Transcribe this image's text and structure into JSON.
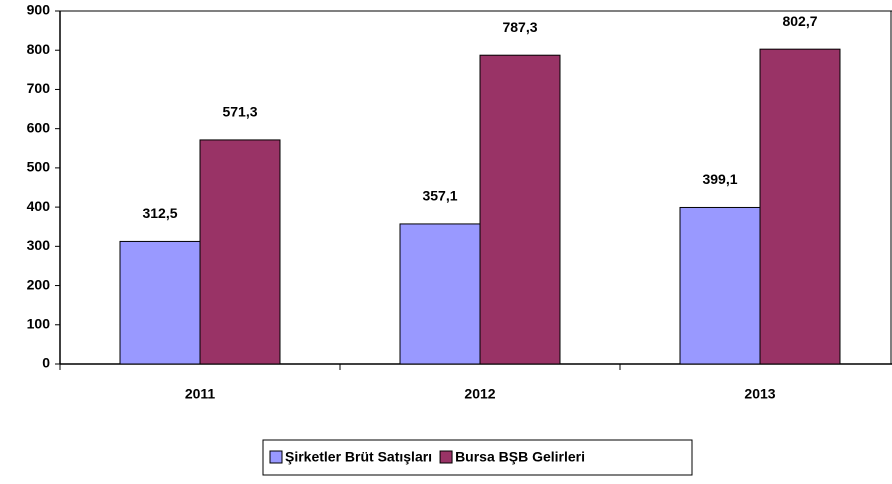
{
  "chart_data": {
    "type": "bar",
    "categories": [
      "2011",
      "2012",
      "2013"
    ],
    "series": [
      {
        "name": "Şirketler Brüt Satışları",
        "color": "#9999ff",
        "values": [
          312.5,
          357.1,
          399.1
        ],
        "value_labels": [
          "312,5",
          "357,1",
          "399,1"
        ]
      },
      {
        "name": "Bursa BŞB Gelirleri",
        "color": "#993366",
        "values": [
          571.3,
          787.3,
          802.7
        ],
        "value_labels": [
          "571,3",
          "787,3",
          "802,7"
        ]
      }
    ],
    "ylim": [
      0,
      900
    ],
    "yticks": [
      0,
      100,
      200,
      300,
      400,
      500,
      600,
      700,
      800,
      900
    ],
    "legend": "bottom"
  }
}
